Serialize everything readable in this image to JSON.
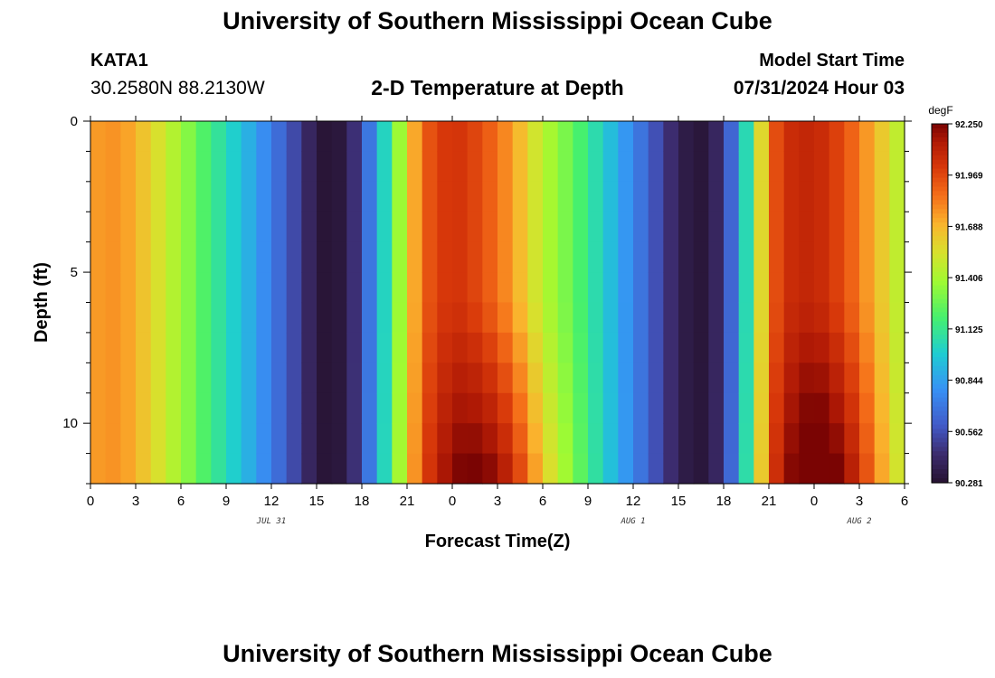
{
  "header": {
    "title": "University of Southern Mississippi Ocean Cube",
    "footer_title": "University of Southern Mississippi Ocean Cube",
    "station": "KATA1",
    "coords": "30.2580N  88.2130W",
    "subtitle": "2-D Temperature at Depth",
    "model_start_label": "Model Start Time",
    "model_start_value": "07/31/2024 Hour 03"
  },
  "chart_data": {
    "type": "heatmap",
    "title": "2-D Temperature at Depth",
    "xlabel": "Forecast Time(Z)",
    "ylabel": "Depth (ft)",
    "x_hours_from_jul31_00z": [
      0,
      54
    ],
    "x_tick_labels": [
      "0",
      "3",
      "6",
      "9",
      "12",
      "15",
      "18",
      "21",
      "0",
      "3",
      "6",
      "9",
      "12",
      "15",
      "18",
      "21",
      "0",
      "3",
      "6"
    ],
    "date_labels": [
      {
        "text": "JUL 31",
        "hour": 12
      },
      {
        "text": "AUG 1",
        "hour": 36
      },
      {
        "text": "AUG 2",
        "hour": 51
      }
    ],
    "y_range_ft": [
      0,
      12
    ],
    "y_tick_labels": [
      "0",
      "5",
      "10"
    ],
    "colorbar": {
      "unit": "degF",
      "min": 90.281,
      "max": 92.25,
      "labels": [
        "92.250",
        "91.969",
        "91.688",
        "91.406",
        "91.125",
        "90.844",
        "90.562",
        "90.281"
      ]
    },
    "surface_profile_degF": [
      [
        0,
        91.75
      ],
      [
        2,
        91.78
      ],
      [
        4,
        91.6
      ],
      [
        6,
        91.38
      ],
      [
        8,
        91.15
      ],
      [
        10,
        90.95
      ],
      [
        12,
        90.72
      ],
      [
        14,
        90.48
      ],
      [
        15,
        90.32
      ],
      [
        16,
        90.28
      ],
      [
        17,
        90.35
      ],
      [
        18,
        90.55
      ],
      [
        19,
        90.85
      ],
      [
        20,
        91.2
      ],
      [
        21,
        91.55
      ],
      [
        22,
        91.9
      ],
      [
        24,
        92.05
      ],
      [
        26,
        91.95
      ],
      [
        28,
        91.75
      ],
      [
        30,
        91.45
      ],
      [
        32,
        91.25
      ],
      [
        34,
        91.0
      ],
      [
        36,
        90.75
      ],
      [
        38,
        90.5
      ],
      [
        39,
        90.38
      ],
      [
        40,
        90.3
      ],
      [
        41,
        90.32
      ],
      [
        42,
        90.48
      ],
      [
        43,
        90.8
      ],
      [
        44,
        91.3
      ],
      [
        45,
        91.85
      ],
      [
        46,
        92.05
      ],
      [
        48,
        92.1
      ],
      [
        50,
        91.95
      ],
      [
        52,
        91.7
      ],
      [
        54,
        91.4
      ]
    ],
    "depth_warming_note": "Values near hours 22-33 and 45-54 increase with depth, reaching about 92.25 degF at 12 ft"
  }
}
